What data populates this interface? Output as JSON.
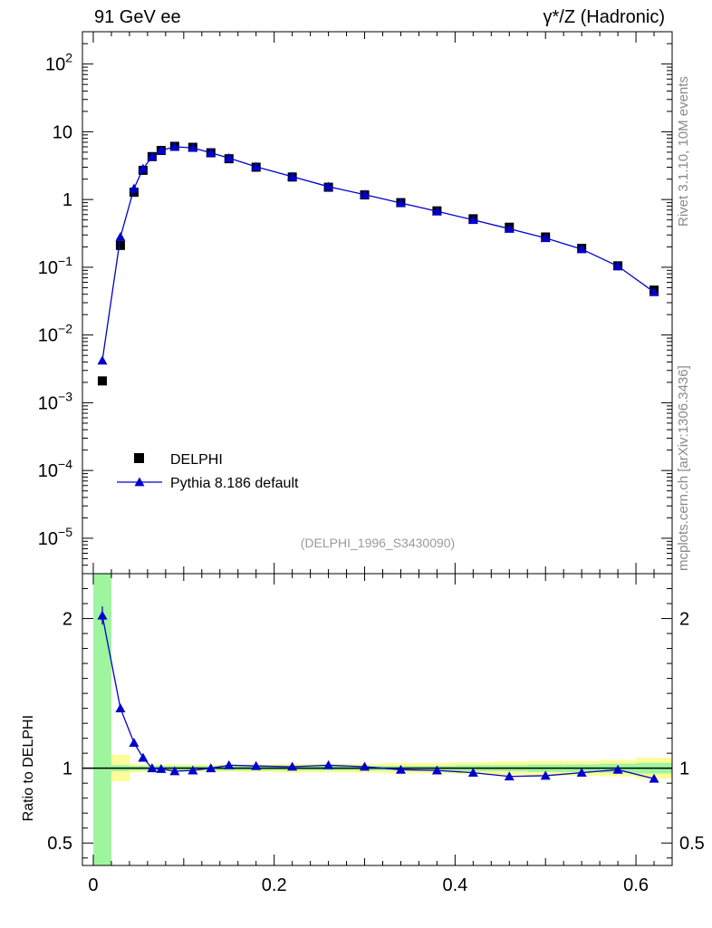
{
  "header": {
    "left": "91 GeV ee",
    "right": "γ*/Z (Hadronic)"
  },
  "side_labels": {
    "rivet": "Rivet 3.1.10,  10M events",
    "mcplots": "mcplots.cern.ch [arXiv:1306.3436]"
  },
  "chart_data": [
    {
      "type": "scatter",
      "panel": "main",
      "yscale": "log",
      "ylim": [
        3e-06,
        300
      ],
      "xlim": [
        -0.012,
        0.64
      ],
      "y_ticks": [
        {
          "value": 1e-05,
          "base": "10",
          "exp": "−5"
        },
        {
          "value": 0.0001,
          "base": "10",
          "exp": "−4"
        },
        {
          "value": 0.001,
          "base": "10",
          "exp": "−3"
        },
        {
          "value": 0.01,
          "base": "10",
          "exp": "−2"
        },
        {
          "value": 0.1,
          "base": "10",
          "exp": "−1"
        },
        {
          "value": 1,
          "base": "1",
          "exp": ""
        },
        {
          "value": 10,
          "base": "10",
          "exp": ""
        },
        {
          "value": 100,
          "base": "10",
          "exp": "2"
        }
      ],
      "legend": {
        "position": "lower-left"
      },
      "watermark": "(DELPHI_1996_S3430090)",
      "series": [
        {
          "name": "DELPHI",
          "marker": "square",
          "color": "#000000",
          "x": [
            0.01,
            0.03,
            0.045,
            0.055,
            0.065,
            0.075,
            0.09,
            0.11,
            0.13,
            0.15,
            0.18,
            0.22,
            0.26,
            0.3,
            0.34,
            0.38,
            0.42,
            0.46,
            0.5,
            0.54,
            0.58,
            0.62
          ],
          "y": [
            0.0021,
            0.21,
            1.28,
            2.7,
            4.3,
            5.3,
            6.1,
            5.9,
            4.9,
            4.0,
            3.0,
            2.15,
            1.52,
            1.17,
            0.9,
            0.68,
            0.52,
            0.39,
            0.28,
            0.19,
            0.105,
            0.046
          ]
        },
        {
          "name": "Pythia 8.186 default",
          "marker": "triangle",
          "color": "#0000cc",
          "x": [
            0.01,
            0.03,
            0.045,
            0.055,
            0.065,
            0.075,
            0.09,
            0.11,
            0.13,
            0.15,
            0.18,
            0.22,
            0.26,
            0.3,
            0.34,
            0.38,
            0.42,
            0.46,
            0.5,
            0.54,
            0.58,
            0.62
          ],
          "y": [
            0.0042,
            0.28,
            1.45,
            2.85,
            4.3,
            5.3,
            6.0,
            5.8,
            4.9,
            4.1,
            3.05,
            2.18,
            1.55,
            1.18,
            0.89,
            0.67,
            0.5,
            0.37,
            0.27,
            0.185,
            0.104,
            0.043
          ]
        }
      ]
    },
    {
      "type": "line",
      "panel": "ratio",
      "ylabel": "Ratio to DELPHI",
      "ylim": [
        0.35,
        2.3
      ],
      "xlim": [
        -0.012,
        0.64
      ],
      "y_ticks": [
        0.5,
        1,
        2
      ],
      "y_tick_labels": [
        "0.5",
        "1",
        "2"
      ],
      "x_ticks": [
        0,
        0.2,
        0.4,
        0.6
      ],
      "x_tick_labels": [
        "0",
        "0.2",
        "0.4",
        "0.6"
      ],
      "bands": {
        "bins": [
          [
            0.0,
            0.02
          ],
          [
            0.02,
            0.04
          ],
          [
            0.04,
            0.05
          ],
          [
            0.05,
            0.06
          ],
          [
            0.06,
            0.07
          ],
          [
            0.07,
            0.08
          ],
          [
            0.08,
            0.1
          ],
          [
            0.1,
            0.12
          ],
          [
            0.12,
            0.14
          ],
          [
            0.14,
            0.16
          ],
          [
            0.16,
            0.2
          ],
          [
            0.2,
            0.24
          ],
          [
            0.24,
            0.28
          ],
          [
            0.28,
            0.32
          ],
          [
            0.32,
            0.36
          ],
          [
            0.36,
            0.4
          ],
          [
            0.4,
            0.44
          ],
          [
            0.44,
            0.48
          ],
          [
            0.48,
            0.52
          ],
          [
            0.52,
            0.56
          ],
          [
            0.56,
            0.6
          ],
          [
            0.6,
            0.64
          ]
        ],
        "green": [
          1.45,
          0.02,
          0.015,
          0.015,
          0.015,
          0.015,
          0.015,
          0.015,
          0.015,
          0.015,
          0.015,
          0.015,
          0.015,
          0.015,
          0.015,
          0.015,
          0.02,
          0.02,
          0.025,
          0.025,
          0.03,
          0.035
        ],
        "yellow": [
          1.45,
          0.09,
          0.03,
          0.025,
          0.025,
          0.025,
          0.025,
          0.025,
          0.025,
          0.025,
          0.025,
          0.03,
          0.03,
          0.03,
          0.035,
          0.035,
          0.04,
          0.045,
          0.05,
          0.05,
          0.055,
          0.07
        ],
        "green_color": "#9ef59e",
        "yellow_color": "#fcfc9a"
      },
      "series": [
        {
          "name": "Pythia 8.186 default",
          "color": "#0000cc",
          "x": [
            0.01,
            0.03,
            0.045,
            0.055,
            0.065,
            0.075,
            0.09,
            0.11,
            0.13,
            0.15,
            0.18,
            0.22,
            0.26,
            0.3,
            0.34,
            0.38,
            0.42,
            0.46,
            0.5,
            0.54,
            0.58,
            0.62
          ],
          "y": [
            2.02,
            1.4,
            1.17,
            1.07,
            1.0,
            0.995,
            0.98,
            0.985,
            1.0,
            1.02,
            1.015,
            1.01,
            1.02,
            1.01,
            0.99,
            0.985,
            0.97,
            0.945,
            0.95,
            0.97,
            0.99,
            0.93
          ]
        }
      ]
    }
  ]
}
